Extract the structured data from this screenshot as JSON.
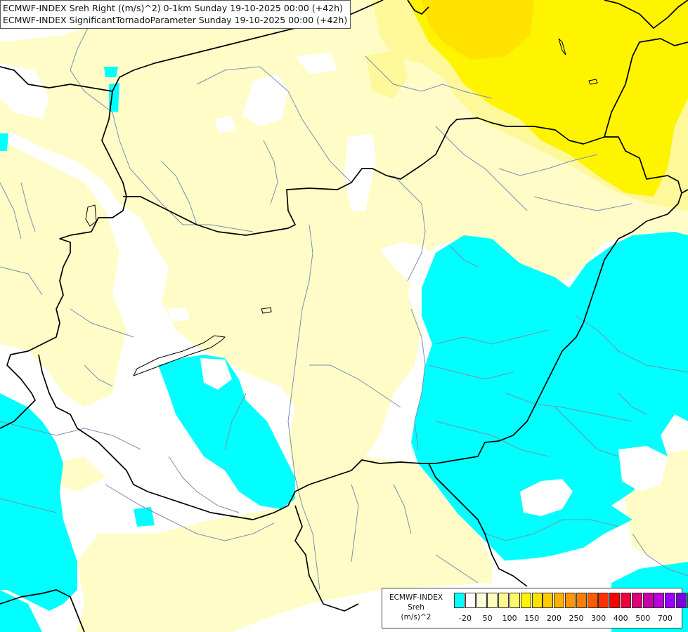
{
  "title": {
    "line1": "ECMWF-INDEX Sreh Right ((m/s)^2) 0-1km Sunday 19-10-2025 00:00 (+42h)",
    "line2": "ECMWF-INDEX SignificantTornadoParameter Sunday 19-10-2025 00:00 (+42h)"
  },
  "legend": {
    "line1": "ECMWF-INDEX",
    "line2": "Sreh",
    "line3": "(m/s)^2",
    "colors": [
      "#00ffff",
      "#ffffff",
      "#fffdd8",
      "#fffbb8",
      "#fff890",
      "#fff66a",
      "#fff400",
      "#ffe200",
      "#ffcc00",
      "#ffb000",
      "#ff9600",
      "#ff7c00",
      "#ff5a00",
      "#ff3000",
      "#ff0000",
      "#ee003a",
      "#dd0077",
      "#cc00aa",
      "#bb00dd",
      "#9900ff",
      "#7700dd",
      "#5500aa",
      "#330077",
      "#00008a"
    ],
    "ticks": [
      "-20",
      "50",
      "100",
      "150",
      "200",
      "250",
      "300",
      "400",
      "500",
      "700"
    ]
  },
  "colors": {
    "cyan": "#00ffff",
    "pale_yellow": "#fffcc8",
    "light_yellow": "#fff89a",
    "yellow": "#fff400",
    "gold": "#ffe200",
    "border": "#000000",
    "river": "#7a8fb0"
  }
}
